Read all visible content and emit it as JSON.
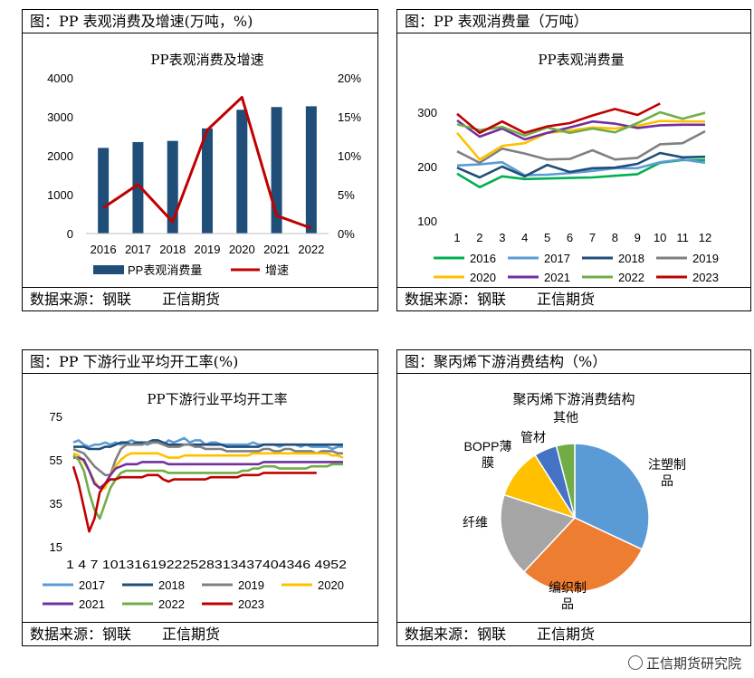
{
  "panels": [
    {
      "title": "图：PP 表观消费及增速(万吨，%)",
      "source_label": "数据来源：钢联",
      "source_org": "正信期货"
    },
    {
      "title": "图：PP 表观消费量（万吨）",
      "source_label": "数据来源：钢联",
      "source_org": "正信期货"
    },
    {
      "title": "图：PP 下游行业平均开工率(%)",
      "source_label": "数据来源：钢联",
      "source_org": "正信期货"
    },
    {
      "title": "图：聚丙烯下游消费结构（%）",
      "source_label": "数据来源：钢联",
      "source_org": "正信期货"
    }
  ],
  "watermark": "正信期货研究院",
  "chart_data": [
    {
      "type": "bar",
      "title": "PP表观消费及增速",
      "categories": [
        "2016",
        "2017",
        "2018",
        "2019",
        "2020",
        "2021",
        "2022"
      ],
      "ylim": [
        0,
        4000
      ],
      "y_ticks": [
        "0",
        "1000",
        "2000",
        "3000",
        "4000"
      ],
      "y2lim": [
        0,
        20
      ],
      "y2_ticks": [
        "0%",
        "5%",
        "10%",
        "15%",
        "20%"
      ],
      "legend_position": "bottom",
      "series": [
        {
          "name": "PP表观消费量",
          "kind": "bar",
          "axis": "left",
          "color": "#1f4e79",
          "values": [
            2200,
            2350,
            2380,
            2700,
            3180,
            3250,
            3270
          ]
        },
        {
          "name": "增速",
          "kind": "line",
          "axis": "right",
          "color": "#c00000",
          "values": [
            3.3,
            6.3,
            1.5,
            13.3,
            17.5,
            2.3,
            0.7
          ]
        }
      ]
    },
    {
      "type": "line",
      "title": "PP表观消费量",
      "x": [
        "1",
        "2",
        "3",
        "4",
        "5",
        "6",
        "7",
        "8",
        "9",
        "10",
        "11",
        "12"
      ],
      "ylim": [
        100,
        300
      ],
      "y_ticks": [
        "100",
        "200",
        "300"
      ],
      "legend_position": "bottom",
      "series": [
        {
          "name": "2016",
          "color": "#00b050",
          "values": [
            187,
            162,
            182,
            177,
            178,
            179,
            180,
            183,
            186,
            207,
            212,
            212
          ]
        },
        {
          "name": "2017",
          "color": "#5b9bd5",
          "values": [
            202,
            204,
            208,
            184,
            185,
            188,
            192,
            197,
            197,
            208,
            213,
            207
          ]
        },
        {
          "name": "2018",
          "color": "#1f4e79",
          "values": [
            198,
            180,
            200,
            182,
            203,
            190,
            197,
            198,
            205,
            225,
            217,
            218
          ]
        },
        {
          "name": "2019",
          "color": "#808080",
          "values": [
            228,
            207,
            233,
            224,
            213,
            214,
            230,
            213,
            216,
            241,
            243,
            265
          ]
        },
        {
          "name": "2020",
          "color": "#ffc000",
          "values": [
            262,
            213,
            238,
            243,
            262,
            266,
            272,
            270,
            275,
            284,
            283,
            283
          ]
        },
        {
          "name": "2021",
          "color": "#7030a0",
          "values": [
            285,
            255,
            270,
            250,
            262,
            272,
            283,
            279,
            271,
            276,
            277,
            277
          ]
        },
        {
          "name": "2022",
          "color": "#70ad47",
          "values": [
            278,
            267,
            273,
            257,
            272,
            262,
            270,
            263,
            280,
            300,
            288,
            299
          ]
        },
        {
          "name": "2023",
          "color": "#c00000",
          "values": [
            297,
            262,
            283,
            262,
            274,
            280,
            294,
            306,
            295,
            316,
            null,
            null
          ]
        }
      ]
    },
    {
      "type": "line",
      "title": "PP下游行业平均开工率",
      "x_tick_labels": [
        "1",
        "4",
        "7",
        "10",
        "13",
        "16",
        "19",
        "22",
        "25",
        "28",
        "31",
        "34",
        "37",
        "40",
        "43",
        "46",
        "49",
        "52"
      ],
      "x_tick_text": "1  4  7 10131619222528313437404346 4952",
      "ylim": [
        15,
        75
      ],
      "y_ticks": [
        "15",
        "35",
        "55",
        "75"
      ],
      "legend_position": "bottom",
      "series": [
        {
          "name": "2017",
          "color": "#5b9bd5",
          "values": [
            63,
            64,
            62,
            61,
            62,
            62,
            63,
            62,
            63,
            62,
            63,
            64,
            63,
            63,
            62,
            63,
            63,
            62,
            64,
            63,
            64,
            65,
            63,
            64,
            64,
            62,
            63,
            63,
            62,
            62,
            62,
            62,
            62,
            62,
            63,
            62,
            62,
            62,
            62,
            61,
            62,
            62,
            62,
            61,
            62,
            61,
            61,
            61,
            61,
            60,
            61,
            61
          ]
        },
        {
          "name": "2018",
          "color": "#1f4e79",
          "values": [
            61,
            61,
            61,
            60,
            60,
            60,
            61,
            61,
            62,
            63,
            63,
            62,
            63,
            63,
            63,
            64,
            64,
            63,
            62,
            62,
            62,
            62,
            62,
            62,
            62,
            62,
            62,
            62,
            62,
            61,
            61,
            61,
            61,
            61,
            61,
            61,
            62,
            62,
            62,
            62,
            62,
            62,
            62,
            62,
            62,
            62,
            62,
            62,
            62,
            62,
            62,
            62
          ]
        },
        {
          "name": "2019",
          "color": "#808080",
          "values": [
            60,
            59,
            58,
            55,
            52,
            50,
            48,
            48,
            55,
            60,
            62,
            62,
            62,
            62,
            63,
            63,
            63,
            62,
            61,
            61,
            61,
            62,
            62,
            61,
            61,
            60,
            60,
            60,
            60,
            59,
            59,
            59,
            59,
            59,
            59,
            59,
            60,
            60,
            59,
            59,
            60,
            60,
            59,
            59,
            59,
            59,
            58,
            59,
            59,
            59,
            58,
            58
          ]
        },
        {
          "name": "2020",
          "color": "#ffc000",
          "values": [
            58,
            57,
            54,
            50,
            45,
            42,
            42,
            48,
            52,
            55,
            57,
            58,
            58,
            58,
            58,
            58,
            58,
            57,
            56,
            56,
            56,
            57,
            57,
            57,
            57,
            57,
            57,
            57,
            57,
            57,
            57,
            57,
            57,
            57,
            58,
            58,
            58,
            58,
            58,
            58,
            58,
            58,
            58,
            58,
            58,
            58,
            58,
            58,
            58,
            57,
            57,
            56
          ]
        },
        {
          "name": "2021",
          "color": "#7030a0",
          "values": [
            56,
            56,
            55,
            50,
            44,
            42,
            44,
            48,
            51,
            52,
            53,
            53,
            53,
            54,
            54,
            54,
            54,
            54,
            53,
            53,
            53,
            53,
            53,
            53,
            53,
            53,
            53,
            53,
            53,
            53,
            53,
            53,
            53,
            53,
            53,
            53,
            54,
            54,
            54,
            54,
            54,
            54,
            54,
            54,
            54,
            54,
            54,
            54,
            54,
            54,
            54,
            54
          ]
        },
        {
          "name": "2022",
          "color": "#70ad47",
          "values": [
            57,
            55,
            50,
            40,
            32,
            28,
            35,
            42,
            46,
            49,
            50,
            50,
            50,
            50,
            50,
            50,
            50,
            50,
            49,
            49,
            49,
            49,
            49,
            49,
            49,
            49,
            49,
            49,
            49,
            49,
            49,
            49,
            50,
            50,
            51,
            51,
            52,
            52,
            52,
            51,
            51,
            51,
            51,
            51,
            51,
            52,
            52,
            52,
            52,
            53,
            53,
            53
          ]
        },
        {
          "name": "2023",
          "color": "#c00000",
          "values": [
            52,
            44,
            33,
            22,
            28,
            40,
            44,
            46,
            46,
            47,
            47,
            47,
            47,
            47,
            48,
            48,
            48,
            46,
            45,
            46,
            46,
            46,
            46,
            46,
            46,
            46,
            47,
            47,
            47,
            47,
            47,
            47,
            48,
            48,
            48,
            48,
            49,
            49,
            49,
            49,
            49,
            49,
            49,
            49,
            49,
            49,
            49,
            null,
            null,
            null,
            null,
            null
          ]
        }
      ]
    },
    {
      "type": "pie",
      "title": "聚丙烯下游消费结构",
      "slices": [
        {
          "label": "注塑制品",
          "value": 32,
          "color": "#5b9bd5"
        },
        {
          "label": "编织制品",
          "value": 30,
          "color": "#ed7d31"
        },
        {
          "label": "纤维",
          "value": 18,
          "color": "#a5a5a5"
        },
        {
          "label": "BOPP薄膜",
          "value": 11,
          "color": "#ffc000"
        },
        {
          "label": "管材",
          "value": 5,
          "color": "#4472c4"
        },
        {
          "label": "其他",
          "value": 4,
          "color": "#70ad47"
        }
      ]
    }
  ]
}
